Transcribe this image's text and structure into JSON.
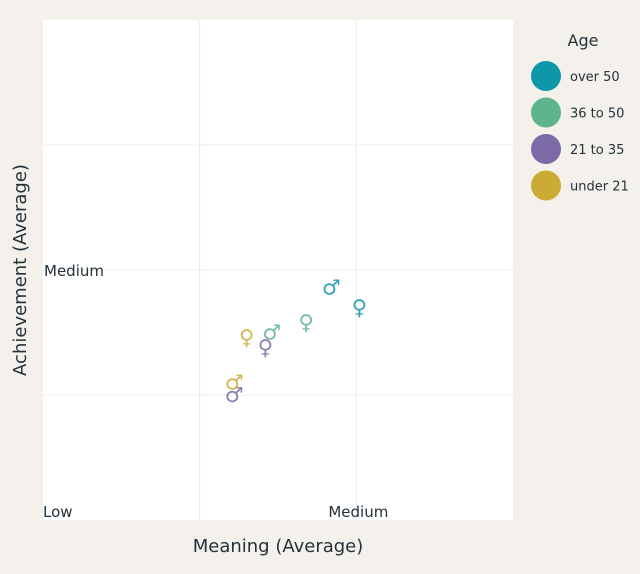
{
  "chart_data": {
    "type": "scatter",
    "xlabel": "Meaning (Average)",
    "ylabel": "Achievement (Average)",
    "x_ticks": [
      {
        "value": 0,
        "label": "Low"
      },
      {
        "value": 1,
        "label": "Medium"
      }
    ],
    "y_ticks": [
      {
        "value": 0,
        "label": "Low"
      },
      {
        "value": 1,
        "label": "Medium"
      }
    ],
    "xlim": [
      0,
      1.5
    ],
    "ylim": [
      0,
      2
    ],
    "grid": true,
    "marker_note": "gender symbol",
    "legend": {
      "title": "Age",
      "position": "right",
      "entries": [
        {
          "name": "over 50",
          "color": "#0e97a9"
        },
        {
          "name": "36 to 50",
          "color": "#5db48d"
        },
        {
          "name": "21 to 35",
          "color": "#7b6aa7"
        },
        {
          "name": "under 21",
          "color": "#ccaa36"
        }
      ]
    },
    "points": [
      {
        "group": "over 50",
        "gender": "male",
        "x": 0.92,
        "y": 0.93
      },
      {
        "group": "over 50",
        "gender": "female",
        "x": 1.01,
        "y": 0.85
      },
      {
        "group": "36 to 50",
        "gender": "male",
        "x": 0.73,
        "y": 0.75
      },
      {
        "group": "36 to 50",
        "gender": "female",
        "x": 0.84,
        "y": 0.79
      },
      {
        "group": "21 to 35",
        "gender": "male",
        "x": 0.61,
        "y": 0.5
      },
      {
        "group": "21 to 35",
        "gender": "female",
        "x": 0.71,
        "y": 0.69
      },
      {
        "group": "under 21",
        "gender": "male",
        "x": 0.61,
        "y": 0.55
      },
      {
        "group": "under 21",
        "gender": "female",
        "x": 0.65,
        "y": 0.73
      }
    ]
  }
}
